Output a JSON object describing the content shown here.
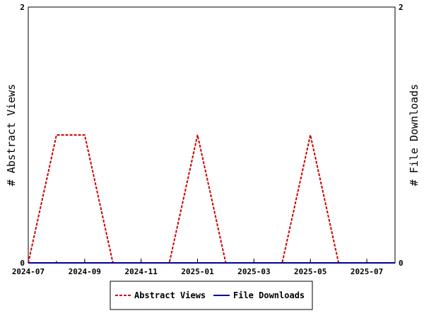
{
  "chart_data": {
    "type": "line",
    "title": "",
    "x_ticks": [
      "2024-07",
      "2024-09",
      "2024-11",
      "2025-01",
      "2025-03",
      "2025-05",
      "2025-07"
    ],
    "x_range": [
      "2024-07",
      "2025-08"
    ],
    "y_left": {
      "label": "# Abstract Views",
      "range": [
        0,
        2
      ],
      "ticks": [
        "0",
        "2"
      ]
    },
    "y_right": {
      "label": "# File Downloads",
      "range": [
        0,
        2
      ],
      "ticks": [
        "0",
        "2"
      ]
    },
    "legend_position": "bottom",
    "series": [
      {
        "name": "Abstract Views",
        "axis": "left",
        "color": "#cc0000",
        "style": "dashed",
        "x": [
          "2024-07",
          "2024-08",
          "2024-09",
          "2024-10",
          "2024-11",
          "2024-12",
          "2025-01",
          "2025-02",
          "2025-03",
          "2025-04",
          "2025-05",
          "2025-06",
          "2025-07",
          "2025-08"
        ],
        "values": [
          0,
          1,
          1,
          0,
          0,
          0,
          1,
          0,
          0,
          0,
          1,
          0,
          0,
          0
        ]
      },
      {
        "name": "File Downloads",
        "axis": "right",
        "color": "#000099",
        "style": "solid",
        "x": [
          "2024-07",
          "2024-08",
          "2024-09",
          "2024-10",
          "2024-11",
          "2024-12",
          "2025-01",
          "2025-02",
          "2025-03",
          "2025-04",
          "2025-05",
          "2025-06",
          "2025-07",
          "2025-08"
        ],
        "values": [
          0,
          0,
          0,
          0,
          0,
          0,
          0,
          0,
          0,
          0,
          0,
          0,
          0,
          0
        ]
      }
    ]
  }
}
